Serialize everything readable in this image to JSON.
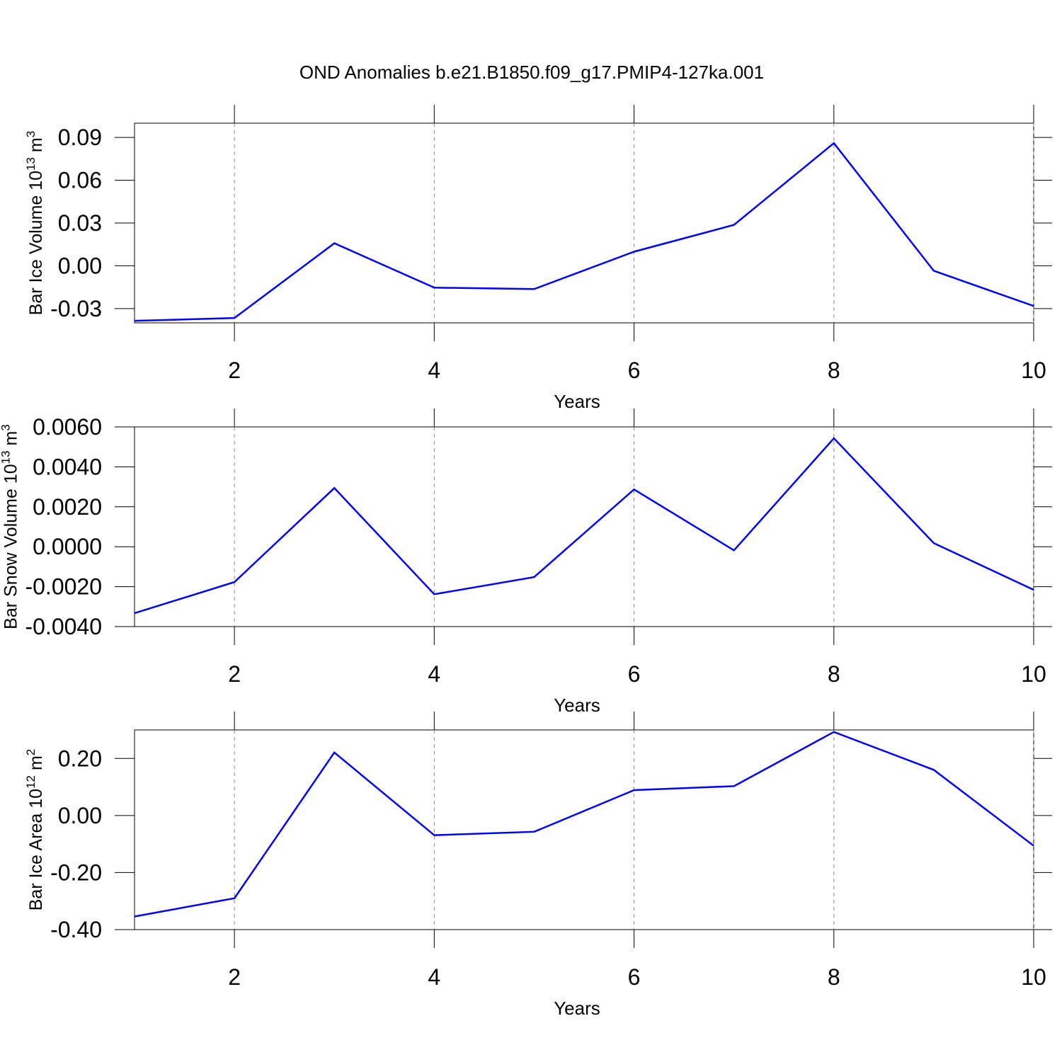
{
  "title": "OND Anomalies b.e21.B1850.f09_g17.PMIP4-127ka.001",
  "chart_data": [
    {
      "type": "line",
      "color": "#0000ff",
      "grid": true,
      "ylabel": {
        "text": "Bar Ice Volume 10",
        "exp": "13",
        "unit": " m",
        "unit_exp": "3"
      },
      "xlabel": "Years",
      "x": [
        1,
        2,
        3,
        4,
        5,
        6,
        7,
        8,
        9,
        10
      ],
      "values": [
        -0.0386,
        -0.0366,
        0.0158,
        -0.0153,
        -0.0163,
        0.0099,
        0.0287,
        0.086,
        -0.0035,
        -0.0282
      ],
      "xlim": [
        1,
        10
      ],
      "xticks": [
        2,
        4,
        6,
        8,
        10
      ],
      "ylim": [
        -0.04,
        0.1
      ],
      "yticks": [
        -0.03,
        {
          "value": 0,
          "label": "0.00"
        },
        0.03,
        0.06,
        0.09
      ]
    },
    {
      "type": "line",
      "color": "#0000ff",
      "grid": true,
      "ylabel": {
        "text": "Bar Snow Volume 10",
        "exp": "13",
        "unit": " m",
        "unit_exp": "3"
      },
      "xlabel": "Years",
      "x": [
        1,
        2,
        3,
        4,
        5,
        6,
        7,
        8,
        9,
        10
      ],
      "values": [
        -0.00333,
        -0.00177,
        0.00294,
        -0.00238,
        -0.00152,
        0.00287,
        -0.00018,
        0.00543,
        0.00018,
        -0.00216
      ],
      "xlim": [
        1,
        10
      ],
      "xticks": [
        2,
        4,
        6,
        8,
        10
      ],
      "ylim": [
        -0.004,
        0.006
      ],
      "yticks": [
        {
          "value": -0.004,
          "label": "-0.0040"
        },
        {
          "value": -0.002,
          "label": "-0.0020"
        },
        {
          "value": 0,
          "label": "0.0000"
        },
        {
          "value": 0.002,
          "label": "0.0020"
        },
        {
          "value": 0.004,
          "label": "0.0040"
        },
        {
          "value": 0.006,
          "label": "0.0060"
        }
      ]
    },
    {
      "type": "line",
      "color": "#0000ff",
      "grid": true,
      "ylabel": {
        "text": "Bar Ice Area 10",
        "exp": "12",
        "unit": " m",
        "unit_exp": "2"
      },
      "xlabel": "Years",
      "x": [
        1,
        2,
        3,
        4,
        5,
        6,
        7,
        8,
        9,
        10
      ],
      "values": [
        -0.354,
        -0.29,
        0.221,
        -0.069,
        -0.057,
        0.089,
        0.103,
        0.293,
        0.16,
        -0.106
      ],
      "xlim": [
        1,
        10
      ],
      "xticks": [
        2,
        4,
        6,
        8,
        10
      ],
      "ylim": [
        -0.4,
        0.3
      ],
      "yticks": [
        {
          "value": -0.4,
          "label": "-0.40"
        },
        {
          "value": -0.2,
          "label": "-0.20"
        },
        {
          "value": 0,
          "label": "0.00"
        },
        {
          "value": 0.2,
          "label": "0.20"
        }
      ]
    }
  ]
}
